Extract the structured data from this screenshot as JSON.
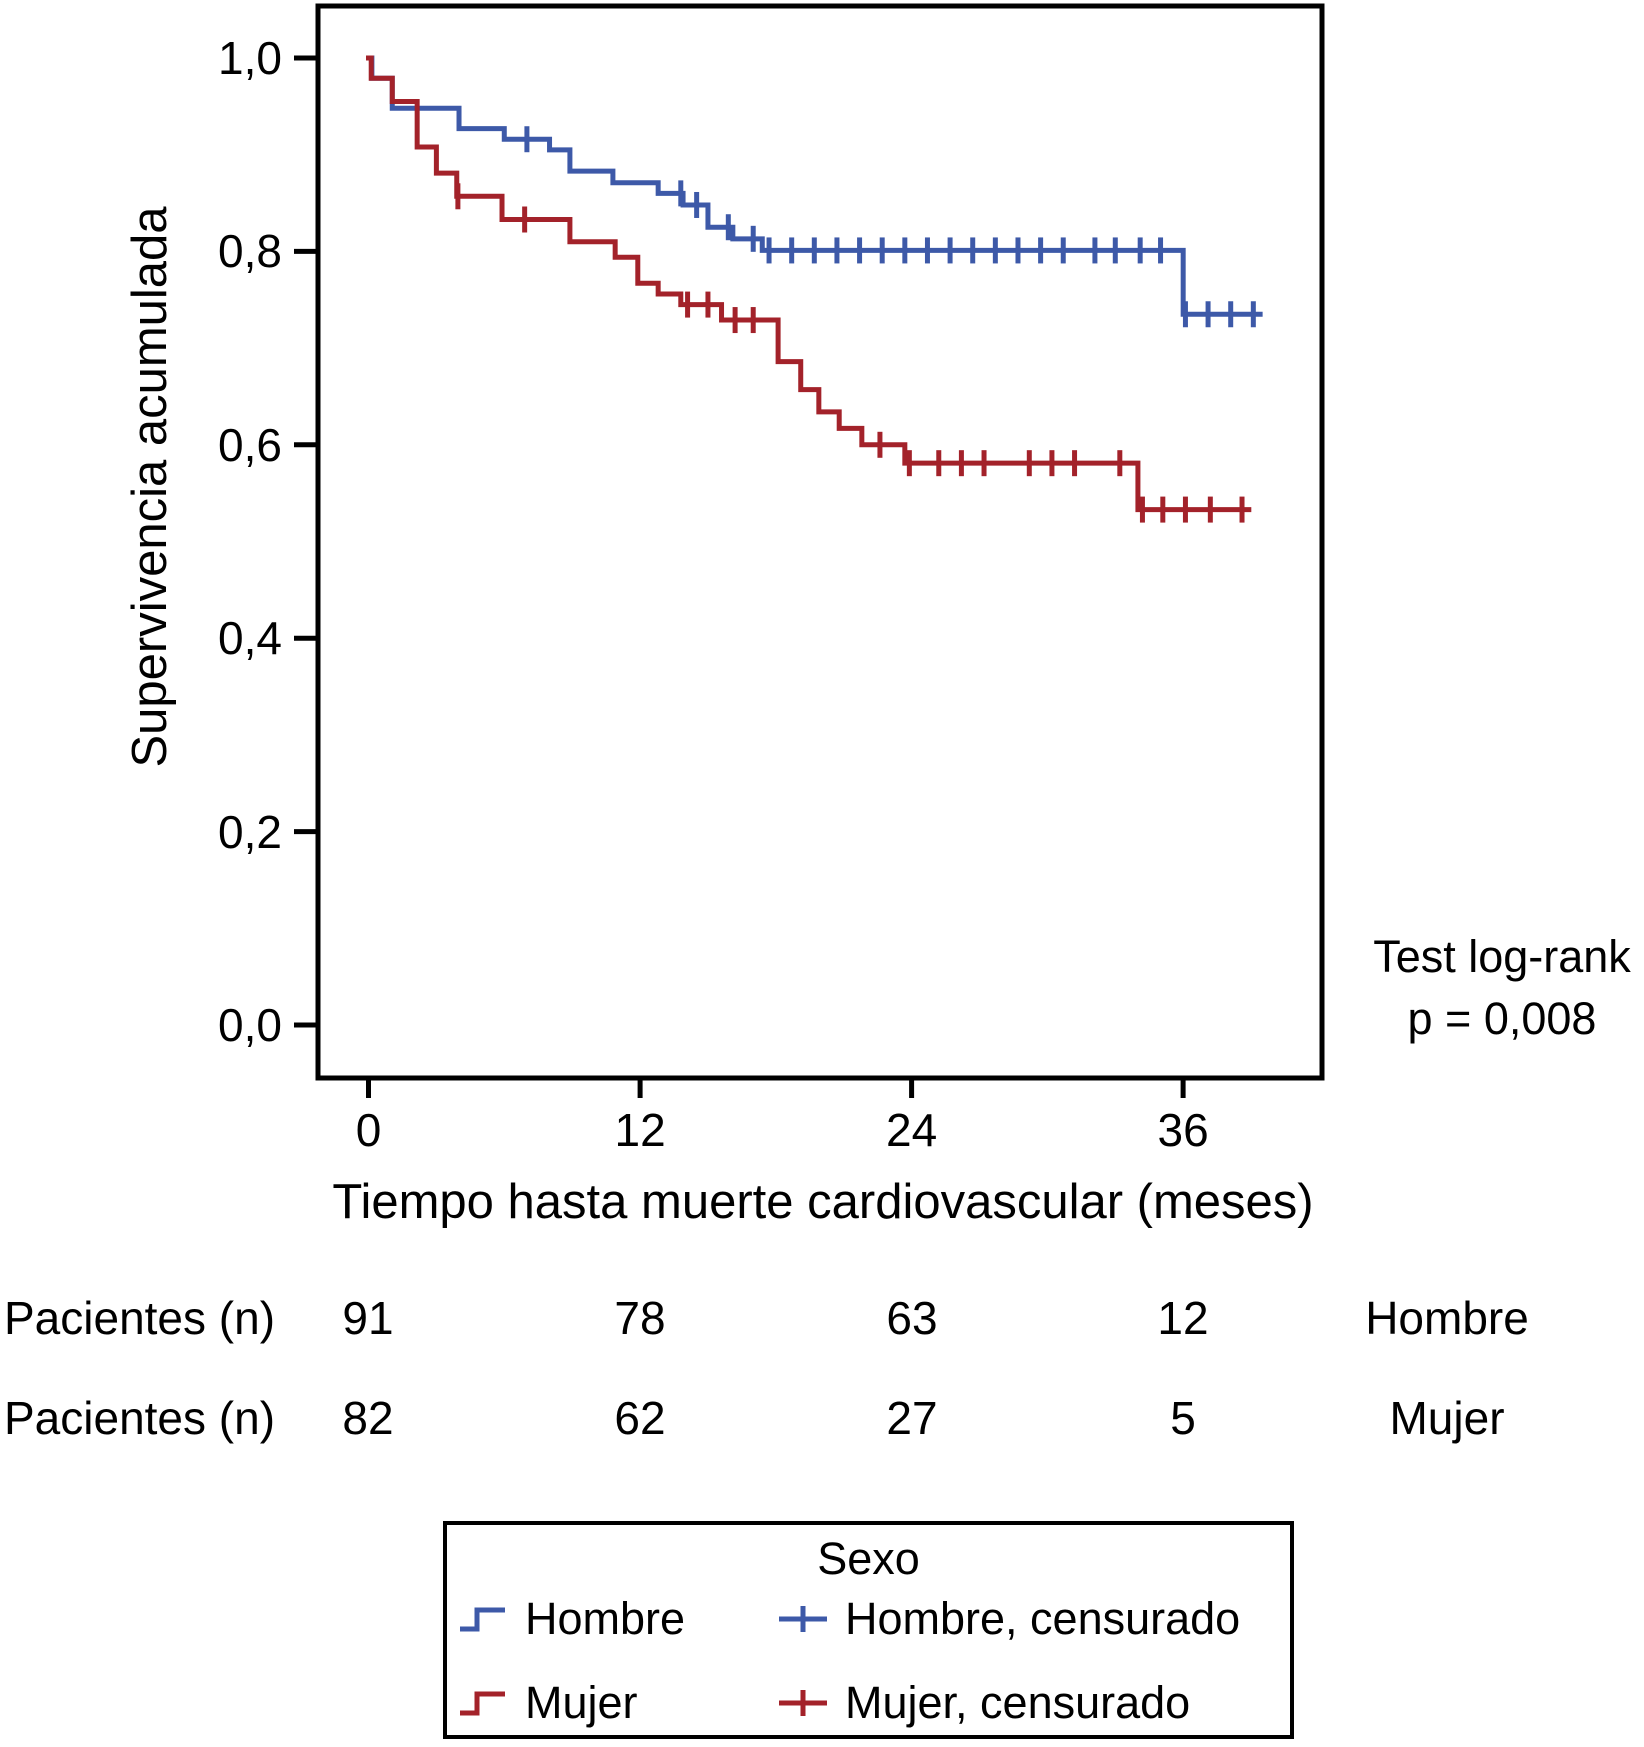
{
  "chart_data": {
    "type": "line",
    "subtype": "kaplan-meier-step",
    "title": "",
    "xlabel": "Tiempo hasta muerte cardiovascular (meses)",
    "ylabel": "Supervivencia acumulada",
    "x_ticks": [
      {
        "label": "0",
        "value": 0
      },
      {
        "label": "12",
        "value": 12
      },
      {
        "label": "24",
        "value": 24
      },
      {
        "label": "36",
        "value": 36
      }
    ],
    "y_ticks": [
      {
        "label": "1,0",
        "value": 1.0
      },
      {
        "label": "0,8",
        "value": 0.8
      },
      {
        "label": "0,6",
        "value": 0.6
      },
      {
        "label": "0,4",
        "value": 0.4
      },
      {
        "label": "0,2",
        "value": 0.2
      },
      {
        "label": "0,0",
        "value": 0.0
      }
    ],
    "x_range": [
      0,
      42
    ],
    "y_range": [
      0,
      1
    ],
    "grid": false,
    "annotation": {
      "line1": "Test log-rank",
      "line2": "p = 0,008"
    },
    "series": [
      {
        "name": "Hombre",
        "color": "#3D59A8",
        "steps": [
          [
            0,
            1.0
          ],
          [
            0.15,
            0.979
          ],
          [
            1.05,
            0.948
          ],
          [
            4.0,
            0.927
          ],
          [
            6.0,
            0.916
          ],
          [
            8.0,
            0.905
          ],
          [
            8.9,
            0.883
          ],
          [
            10.8,
            0.871
          ],
          [
            12.8,
            0.86
          ],
          [
            13.9,
            0.848
          ],
          [
            15.0,
            0.825
          ],
          [
            16.1,
            0.813
          ],
          [
            17.4,
            0.801
          ],
          [
            36.0,
            0.735
          ]
        ],
        "end": 39.4,
        "censors": [
          7.0,
          13.8,
          14.5,
          15.9,
          17.0,
          17.7,
          18.7,
          19.7,
          20.7,
          21.7,
          22.7,
          23.7,
          24.7,
          25.7,
          26.7,
          27.7,
          28.7,
          29.7,
          30.7,
          32.1,
          33.0,
          34.1,
          35.0,
          36.1,
          37.1,
          38.1,
          39.1
        ]
      },
      {
        "name": "Mujer",
        "color": "#A3222A",
        "steps": [
          [
            0,
            1.0
          ],
          [
            0.12,
            0.979
          ],
          [
            1.05,
            0.955
          ],
          [
            2.15,
            0.908
          ],
          [
            3.0,
            0.881
          ],
          [
            3.9,
            0.857
          ],
          [
            5.9,
            0.833
          ],
          [
            8.9,
            0.81
          ],
          [
            10.9,
            0.794
          ],
          [
            11.9,
            0.767
          ],
          [
            12.8,
            0.756
          ],
          [
            13.8,
            0.745
          ],
          [
            15.6,
            0.729
          ],
          [
            18.1,
            0.686
          ],
          [
            19.1,
            0.657
          ],
          [
            19.9,
            0.634
          ],
          [
            20.8,
            0.617
          ],
          [
            21.8,
            0.6
          ],
          [
            23.7,
            0.581
          ],
          [
            34.0,
            0.533
          ]
        ],
        "end": 38.9,
        "censors": [
          3.95,
          6.9,
          14.1,
          15.0,
          16.2,
          17.0,
          22.6,
          23.9,
          25.2,
          26.2,
          27.2,
          29.2,
          30.2,
          31.2,
          33.2,
          34.2,
          35.1,
          36.1,
          37.2,
          38.6
        ]
      }
    ]
  },
  "risk_table": {
    "rows": [
      {
        "label": "Pacientes (n)",
        "counts": [
          "91",
          "78",
          "63",
          "12"
        ],
        "group": "Hombre"
      },
      {
        "label": "Pacientes (n)",
        "counts": [
          "82",
          "62",
          "27",
          "5"
        ],
        "group": "Mujer"
      }
    ]
  },
  "legend": {
    "title": "Sexo",
    "items": [
      {
        "label": "Hombre",
        "type": "line",
        "color": "#3D59A8"
      },
      {
        "label": "Hombre, censurado",
        "type": "censor",
        "color": "#3D59A8"
      },
      {
        "label": "Mujer",
        "type": "line",
        "color": "#A3222A"
      },
      {
        "label": "Mujer, censurado",
        "type": "censor",
        "color": "#A3222A"
      }
    ]
  },
  "colors": {
    "hombre": "#3D59A8",
    "mujer": "#A3222A",
    "axis": "#000000",
    "background": "#ffffff"
  }
}
